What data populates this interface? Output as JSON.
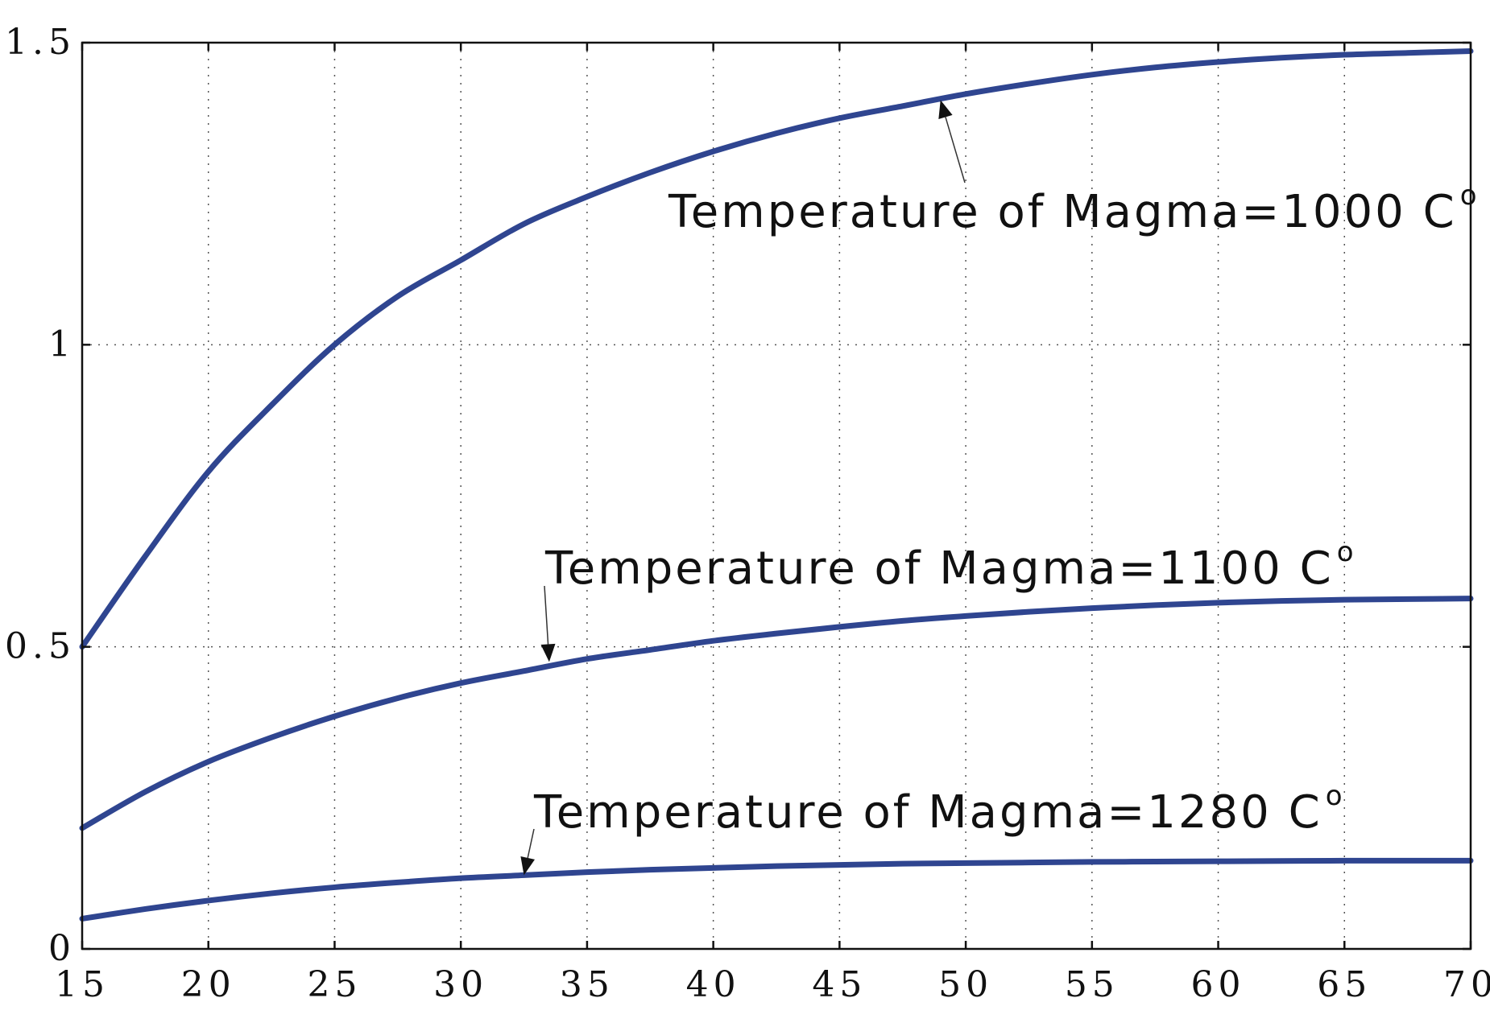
{
  "chart_data": {
    "type": "line",
    "title": "",
    "xlabel": "",
    "ylabel": "",
    "xlim": [
      15,
      70
    ],
    "ylim": [
      0,
      1.5
    ],
    "grid": true,
    "x_ticks": [
      15,
      20,
      25,
      30,
      35,
      40,
      45,
      50,
      55,
      60,
      65,
      70
    ],
    "x_tick_labels": [
      "15",
      "20",
      "25",
      "30",
      "35",
      "40",
      "45",
      "50",
      "55",
      "60",
      "65",
      "70"
    ],
    "y_ticks": [
      0,
      0.5,
      1,
      1.5
    ],
    "y_tick_labels": [
      "0",
      "0.5",
      "1",
      "1.5"
    ],
    "x": [
      15,
      17.5,
      20,
      22.5,
      25,
      27.5,
      30,
      32.5,
      35,
      37.5,
      40,
      42.5,
      45,
      47.5,
      50,
      52.5,
      55,
      57.5,
      60,
      62.5,
      65,
      67.5,
      70
    ],
    "series": [
      {
        "name": "Temperature of Magma=1000 C°",
        "color": "#2f4590",
        "values": [
          0.5,
          0.65,
          0.79,
          0.9,
          1.0,
          1.08,
          1.14,
          1.2,
          1.245,
          1.285,
          1.32,
          1.35,
          1.375,
          1.395,
          1.415,
          1.432,
          1.447,
          1.459,
          1.468,
          1.475,
          1.48,
          1.483,
          1.486
        ]
      },
      {
        "name": "Temperature of Magma=1100 C°",
        "color": "#2f4590",
        "values": [
          0.2,
          0.26,
          0.31,
          0.35,
          0.385,
          0.415,
          0.44,
          0.46,
          0.48,
          0.495,
          0.51,
          0.522,
          0.533,
          0.543,
          0.551,
          0.558,
          0.564,
          0.569,
          0.573,
          0.576,
          0.578,
          0.579,
          0.58
        ]
      },
      {
        "name": "Temperature of Magma=1280 C°",
        "color": "#2f4590",
        "values": [
          0.05,
          0.066,
          0.08,
          0.092,
          0.102,
          0.11,
          0.117,
          0.122,
          0.127,
          0.131,
          0.134,
          0.137,
          0.139,
          0.141,
          0.142,
          0.143,
          0.144,
          0.1445,
          0.145,
          0.1455,
          0.146,
          0.146,
          0.146
        ]
      }
    ],
    "annotations": [
      {
        "text": "Temperature of Magma=1000 C",
        "superscript": "o",
        "series": 0,
        "arrow_x": 49,
        "arrow_y": 1.405
      },
      {
        "text": "Temperature of Magma=1100 C",
        "superscript": "o",
        "series": 1,
        "arrow_x": 33.5,
        "arrow_y": 0.475
      },
      {
        "text": "Temperature of Magma=1280 C",
        "superscript": "o",
        "series": 2,
        "arrow_x": 32.5,
        "arrow_y": 0.122
      }
    ]
  }
}
